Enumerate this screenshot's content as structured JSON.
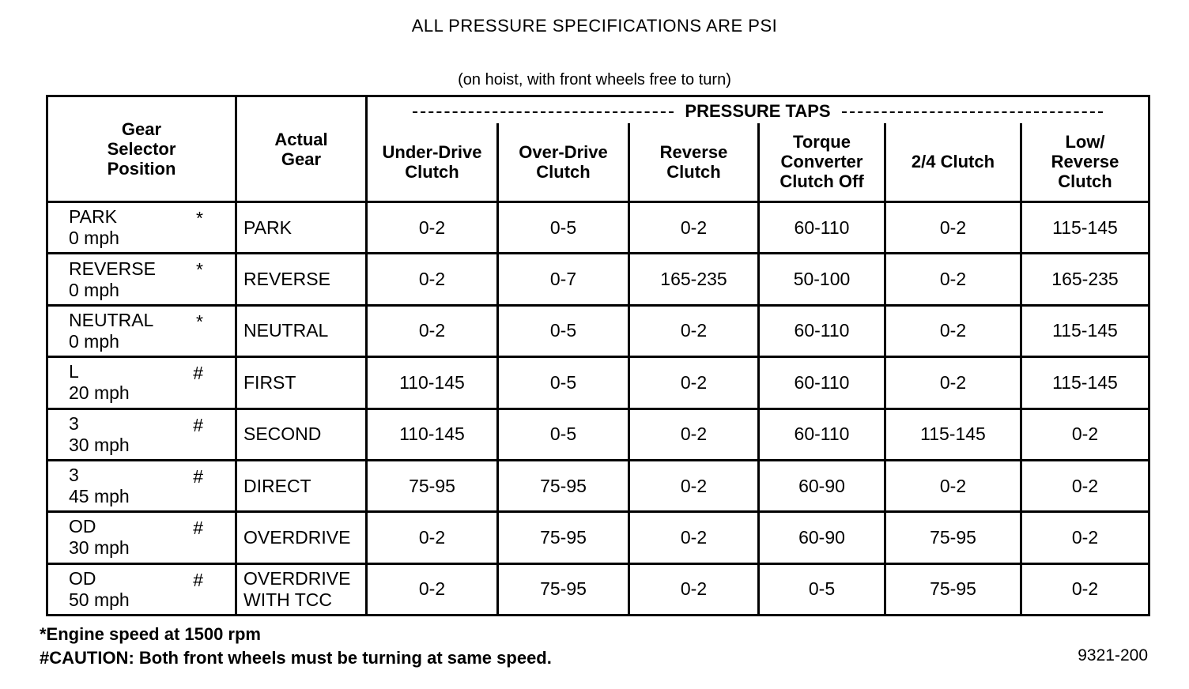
{
  "title": "ALL PRESSURE SPECIFICATIONS ARE PSI",
  "subtitle": "(on hoist, with front wheels free to turn)",
  "headers": {
    "selector": "Gear Selector Position",
    "actual": "Actual Gear",
    "taps": "PRESSURE TAPS",
    "columns": [
      "Under-Drive Clutch",
      "Over-Drive Clutch",
      "Reverse Clutch",
      "Torque Converter Clutch Off",
      "2/4 Clutch",
      "Low/ Reverse Clutch"
    ]
  },
  "rows": [
    {
      "position": "PARK",
      "speed": "0 mph",
      "mark": "*",
      "gear": "PARK",
      "values": [
        "0-2",
        "0-5",
        "0-2",
        "60-110",
        "0-2",
        "115-145"
      ]
    },
    {
      "position": "REVERSE",
      "speed": "0 mph",
      "mark": "*",
      "gear": "REVERSE",
      "values": [
        "0-2",
        "0-7",
        "165-235",
        "50-100",
        "0-2",
        "165-235"
      ]
    },
    {
      "position": "NEUTRAL",
      "speed": "0 mph",
      "mark": "*",
      "gear": "NEUTRAL",
      "values": [
        "0-2",
        "0-5",
        "0-2",
        "60-110",
        "0-2",
        "115-145"
      ]
    },
    {
      "position": "L",
      "speed": "20 mph",
      "mark": "#",
      "gear": "FIRST",
      "values": [
        "110-145",
        "0-5",
        "0-2",
        "60-110",
        "0-2",
        "115-145"
      ]
    },
    {
      "position": "3",
      "speed": "30 mph",
      "mark": "#",
      "gear": "SECOND",
      "values": [
        "110-145",
        "0-5",
        "0-2",
        "60-110",
        "115-145",
        "0-2"
      ]
    },
    {
      "position": "3",
      "speed": "45 mph",
      "mark": "#",
      "gear": "DIRECT",
      "values": [
        "75-95",
        "75-95",
        "0-2",
        "60-90",
        "0-2",
        "0-2"
      ]
    },
    {
      "position": "OD",
      "speed": "30 mph",
      "mark": "#",
      "gear": "OVERDRIVE",
      "values": [
        "0-2",
        "75-95",
        "0-2",
        "60-90",
        "75-95",
        "0-2"
      ]
    },
    {
      "position": "OD",
      "speed": "50 mph",
      "mark": "#",
      "gear": "OVERDRIVE WITH TCC",
      "values": [
        "0-2",
        "75-95",
        "0-2",
        "0-5",
        "75-95",
        "0-2"
      ]
    }
  ],
  "footnotes": [
    "*Engine speed at 1500 rpm",
    "#CAUTION: Both front wheels must be turning at same speed."
  ],
  "figure_code": "9321-200"
}
